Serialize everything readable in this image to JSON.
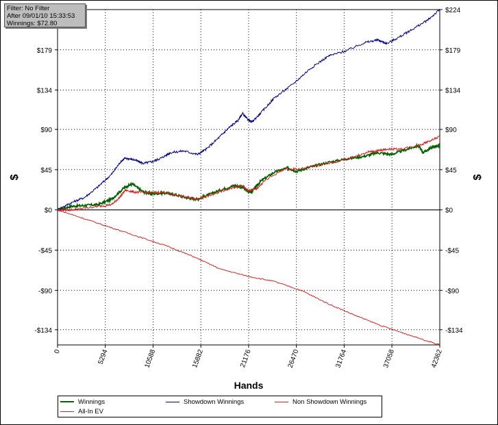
{
  "filter_box": {
    "line1": "Filter: No Filter",
    "line2": "After 09/01/10 15:33:53",
    "line3": "Winnings: $72.80"
  },
  "chart_data": {
    "type": "line",
    "xlabel": "Hands",
    "ylabel": "$",
    "xlim": [
      0,
      42362
    ],
    "ylim": [
      -151,
      224
    ],
    "x_ticks": [
      0,
      5294,
      10588,
      15882,
      21176,
      26470,
      31764,
      37058,
      42362
    ],
    "x_tick_labels": [
      "0",
      "5294",
      "10588",
      "15882",
      "21176",
      "26470",
      "31764",
      "37058",
      "42362"
    ],
    "y_ticks": [
      224,
      179,
      134,
      90,
      45,
      0,
      -45,
      -90,
      -134
    ],
    "y_tick_labels": [
      "$224",
      "$179",
      "$134",
      "$90",
      "$45",
      "$0",
      "-$45",
      "-$90",
      "-$134"
    ],
    "grid": true,
    "legend_position": "bottom",
    "series": [
      {
        "name": "Winnings",
        "color": "#006400",
        "x": [
          0,
          1500,
          3000,
          4500,
          6000,
          7400,
          8300,
          9500,
          10500,
          12000,
          13000,
          14500,
          15500,
          16500,
          18000,
          19500,
          20500,
          21000,
          21500,
          22500,
          24000,
          25500,
          26500,
          28000,
          30000,
          32000,
          34000,
          35500,
          37000,
          38500,
          40000,
          40500,
          41500,
          42362
        ],
        "values": [
          0,
          4,
          5,
          6,
          12,
          25,
          29,
          20,
          18,
          19,
          17,
          13,
          12,
          16,
          22,
          27,
          26,
          21,
          20,
          32,
          42,
          47,
          43,
          48,
          53,
          57,
          60,
          64,
          62,
          67,
          72,
          64,
          70,
          72
        ]
      },
      {
        "name": "Showdown Winnings",
        "color": "#00008b",
        "x": [
          0,
          1500,
          3000,
          4500,
          6000,
          7000,
          7500,
          8500,
          9500,
          10500,
          11500,
          12500,
          14000,
          15500,
          16500,
          18000,
          19000,
          20000,
          20500,
          21000,
          21500,
          22500,
          24000,
          26000,
          28000,
          30000,
          32000,
          34000,
          35500,
          36500,
          38000,
          39500,
          41000,
          42362
        ],
        "values": [
          0,
          8,
          14,
          26,
          40,
          54,
          58,
          56,
          52,
          54,
          58,
          64,
          66,
          62,
          68,
          82,
          92,
          100,
          108,
          102,
          98,
          108,
          125,
          140,
          158,
          172,
          178,
          187,
          190,
          186,
          194,
          203,
          212,
          224
        ]
      },
      {
        "name": "Non Showdown Winnings",
        "color": "#dc1e1e",
        "x": [
          0,
          1500,
          3000,
          4500,
          6000,
          6800,
          7500,
          8500,
          10000,
          11500,
          13000,
          14500,
          15500,
          16500,
          18000,
          19500,
          20500,
          21000,
          22000,
          23000,
          25000,
          27000,
          29000,
          31000,
          33000,
          34500,
          35500,
          36500,
          38000,
          40000,
          41000,
          42362
        ],
        "values": [
          0,
          0,
          2,
          4,
          6,
          13,
          22,
          20,
          19,
          20,
          17,
          14,
          12,
          15,
          20,
          25,
          27,
          22,
          23,
          33,
          45,
          46,
          50,
          54,
          60,
          65,
          66,
          68,
          68,
          72,
          76,
          82
        ]
      },
      {
        "name": "All-In EV",
        "color": "#dc1e1e",
        "x": [
          0,
          3000,
          6000,
          9000,
          12000,
          15000,
          18000,
          21000,
          24000,
          27000,
          30000,
          33000,
          36000,
          39000,
          42362
        ],
        "values": [
          0,
          -10,
          -20,
          -30,
          -40,
          -52,
          -66,
          -74,
          -80,
          -90,
          -105,
          -118,
          -130,
          -140,
          -151
        ]
      }
    ]
  }
}
